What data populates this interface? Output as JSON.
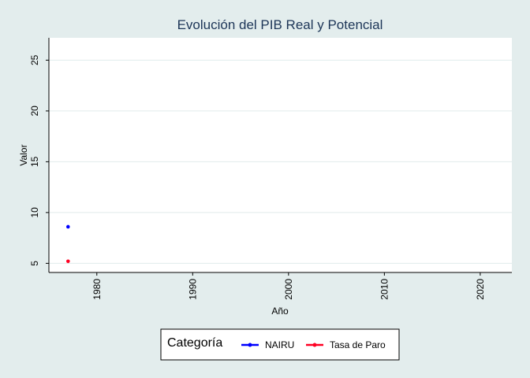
{
  "chart_data": {
    "type": "scatter",
    "title": "Evolución del PIB Real y Potencial",
    "xlabel": "Año",
    "ylabel": "Valor",
    "xlim": [
      1975,
      2023.3
    ],
    "ylim": [
      4.1,
      27.2
    ],
    "xticks": [
      1980,
      1990,
      2000,
      2010,
      2020
    ],
    "yticks": [
      5,
      10,
      15,
      20,
      25
    ],
    "grid": true,
    "legend": {
      "title": "Categoría",
      "position": "bottom"
    },
    "series": [
      {
        "name": "NAIRU",
        "color": "#0000ff",
        "points": [
          {
            "x": 1977,
            "y": 8.6
          }
        ]
      },
      {
        "name": "Tasa de Paro",
        "color": "#ff0022",
        "points": [
          {
            "x": 1977,
            "y": 5.2
          }
        ]
      }
    ]
  }
}
